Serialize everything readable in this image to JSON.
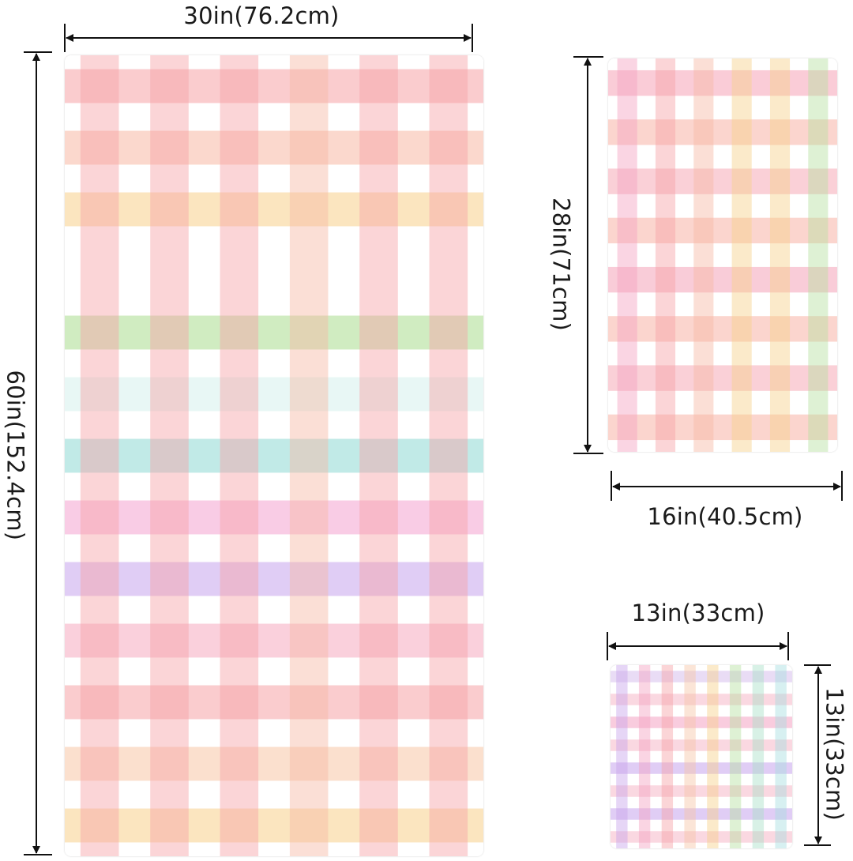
{
  "towels": {
    "bath": {
      "width_label": "30in(76.2cm)",
      "height_label": "60in(152.4cm)",
      "row_colors": [
        "#f6a2a6",
        "#f7b8a4",
        "#f7d08a",
        "#ffffff",
        "#a9dc8e",
        "#d6f1ec",
        "#8ed9d3",
        "#f4a3cf",
        "#c7a4ec",
        "#f6a9bf",
        "#f6a2a6",
        "#f7c6a6",
        "#f7d08a"
      ],
      "col_colors": [
        "#f6a2a6",
        "#f6a2a6",
        "#f6a2a6",
        "#f7b8a4",
        "#f6a2a6",
        "#f6a2a6"
      ]
    },
    "hand": {
      "width_label": "16in(40.5cm)",
      "height_label": "28in(71cm)",
      "row_colors": [
        "#f6a2b6",
        "#f7b2a6",
        "#f6a9b6",
        "#f7b2a6",
        "#f4a2b8",
        "#f7b2a6",
        "#f6a9b6",
        "#f7b2a6"
      ],
      "col_colors": [
        "#f4a2c2",
        "#f6a2a6",
        "#f7b8a4",
        "#f7d08a",
        "#f7d08a",
        "#b6e0a0"
      ]
    },
    "wash": {
      "width_label": "13in(33cm)",
      "height_label": "13in(33cm)",
      "row_colors": [
        "#d7c0ec",
        "#f6b8c8",
        "#f4a2c2",
        "#f6b8c8",
        "#c7a4ec",
        "#f6b8c8",
        "#c7a4ec",
        "#f6b8c8"
      ],
      "col_colors": [
        "#c7a4ec",
        "#f4a2c2",
        "#f6a2a6",
        "#f7c6a6",
        "#f7d08a",
        "#b6e0a0",
        "#a9e0c8",
        "#a6dde0"
      ]
    }
  }
}
